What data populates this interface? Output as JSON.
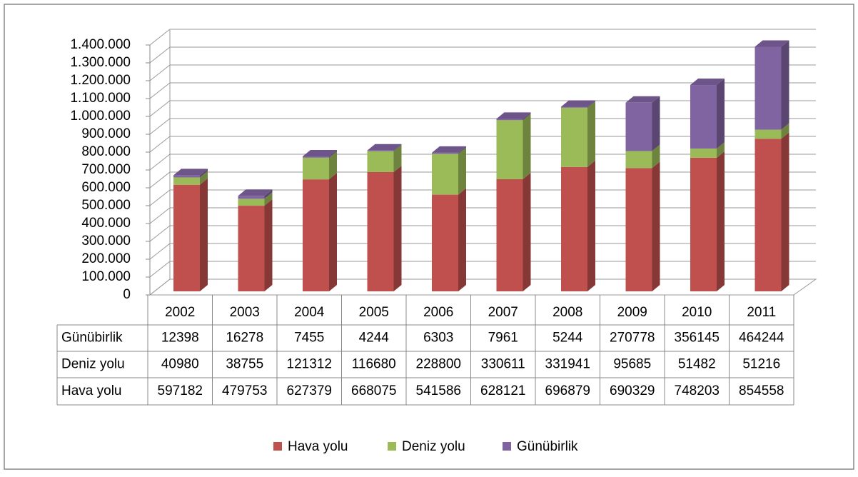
{
  "chart_data": {
    "type": "bar",
    "stacked": true,
    "three_d": true,
    "categories": [
      "2002",
      "2003",
      "2004",
      "2005",
      "2006",
      "2007",
      "2008",
      "2009",
      "2010",
      "2011"
    ],
    "series": [
      {
        "name": "Hava yolu",
        "color": "#c0504d",
        "values": [
          597182,
          479753,
          627379,
          668075,
          541586,
          628121,
          696879,
          690329,
          748203,
          854558
        ]
      },
      {
        "name": "Deniz yolu",
        "color": "#9bbb59",
        "values": [
          40980,
          38755,
          121312,
          116680,
          228800,
          330611,
          331941,
          95685,
          51482,
          51216
        ]
      },
      {
        "name": "Günübirlik",
        "color": "#8064a2",
        "values": [
          12398,
          16278,
          7455,
          4244,
          6303,
          7961,
          5244,
          270778,
          356145,
          464244
        ]
      }
    ],
    "ylim": [
      0,
      1400000
    ],
    "yticks": [
      0,
      {
        "value": 100000,
        "label": "100.000"
      },
      {
        "value": 200000,
        "label": "200.000"
      },
      {
        "value": 300000,
        "label": "300.000"
      },
      {
        "value": 400000,
        "label": "400.000"
      },
      {
        "value": 500000,
        "label": "500.000"
      },
      {
        "value": 600000,
        "label": "600.000"
      },
      {
        "value": 700000,
        "label": "700.000"
      },
      {
        "value": 800000,
        "label": "800.000"
      },
      {
        "value": 900000,
        "label": "900.000"
      },
      {
        "value": 1000000,
        "label": "1.000.000"
      },
      {
        "value": 1100000,
        "label": "1.100.000"
      },
      {
        "value": 1200000,
        "label": "1.200.000"
      },
      {
        "value": 1300000,
        "label": "1.300.000"
      },
      {
        "value": 1400000,
        "label": "1.400.000"
      }
    ],
    "grid": true,
    "legend": "bottom",
    "data_table": true
  }
}
